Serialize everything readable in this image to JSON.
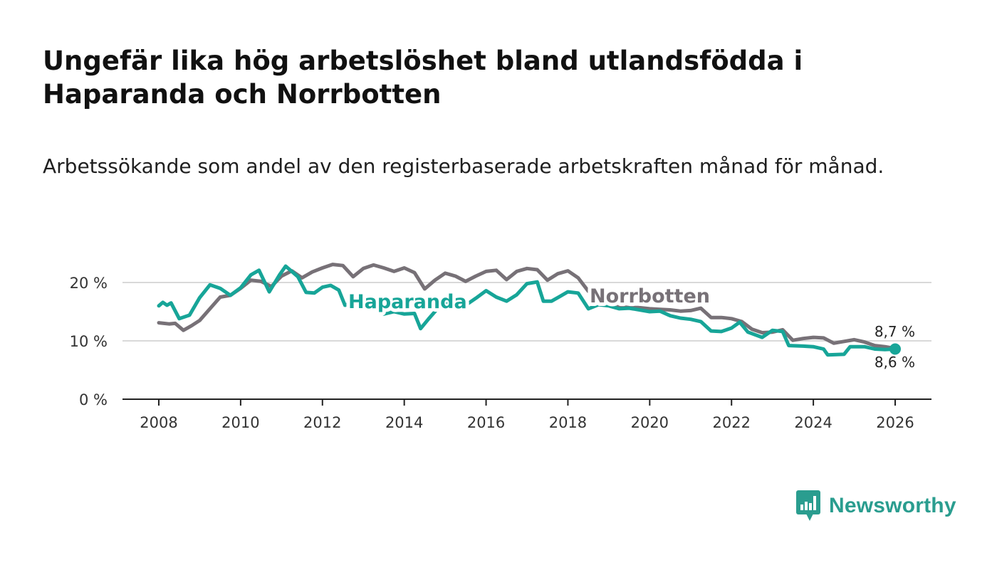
{
  "header": {
    "title": "Ungefär lika hög arbetslöshet bland utlandsfödda i Haparanda och Norrbotten",
    "subtitle": "Arbetssökande som andel av den registerbaserade arbetskraften månad för månad."
  },
  "brand": {
    "name": "Newsworthy",
    "logo_icon": "bar-chart-speech-bubble-icon",
    "color": "#2a9d8f"
  },
  "chart_data": {
    "type": "line",
    "title": "Ungefär lika hög arbetslöshet bland utlandsfödda i Haparanda och Norrbotten",
    "subtitle": "Arbetssökande som andel av den registerbaserade arbetskraften månad för månad.",
    "xlabel": "",
    "ylabel": "",
    "xlim": [
      2007.5,
      2026.9
    ],
    "ylim": [
      0,
      20
    ],
    "x_ticks": [
      2008,
      2010,
      2012,
      2014,
      2016,
      2018,
      2020,
      2022,
      2024,
      2026
    ],
    "x_tick_labels": [
      "2008",
      "2010",
      "2012",
      "2014",
      "2016",
      "2018",
      "2020",
      "2022",
      "2024",
      "2026"
    ],
    "y_ticks": [
      0,
      10,
      20
    ],
    "y_tick_labels": [
      "0 %",
      "10 %",
      "20 %"
    ],
    "grid": true,
    "series": [
      {
        "name": "Norrbotten",
        "color": "#777177",
        "end_label": "8,7 %",
        "points": [
          [
            2008.0,
            13.1
          ],
          [
            2008.25,
            12.9
          ],
          [
            2008.4,
            13.0
          ],
          [
            2008.6,
            11.8
          ],
          [
            2008.8,
            12.6
          ],
          [
            2009.0,
            13.5
          ],
          [
            2009.25,
            15.5
          ],
          [
            2009.5,
            17.5
          ],
          [
            2009.75,
            17.8
          ],
          [
            2010.0,
            19.0
          ],
          [
            2010.25,
            20.4
          ],
          [
            2010.5,
            20.2
          ],
          [
            2010.75,
            19.3
          ],
          [
            2011.0,
            21.1
          ],
          [
            2011.25,
            22.0
          ],
          [
            2011.5,
            20.8
          ],
          [
            2011.75,
            21.8
          ],
          [
            2012.0,
            22.5
          ],
          [
            2012.25,
            23.1
          ],
          [
            2012.5,
            22.9
          ],
          [
            2012.75,
            21.0
          ],
          [
            2013.0,
            22.4
          ],
          [
            2013.25,
            23.0
          ],
          [
            2013.5,
            22.5
          ],
          [
            2013.75,
            21.9
          ],
          [
            2014.0,
            22.5
          ],
          [
            2014.25,
            21.7
          ],
          [
            2014.5,
            18.9
          ],
          [
            2014.75,
            20.4
          ],
          [
            2015.0,
            21.6
          ],
          [
            2015.25,
            21.1
          ],
          [
            2015.5,
            20.2
          ],
          [
            2015.75,
            21.1
          ],
          [
            2016.0,
            21.9
          ],
          [
            2016.25,
            22.1
          ],
          [
            2016.5,
            20.5
          ],
          [
            2016.75,
            21.9
          ],
          [
            2017.0,
            22.4
          ],
          [
            2017.25,
            22.2
          ],
          [
            2017.5,
            20.4
          ],
          [
            2017.75,
            21.5
          ],
          [
            2018.0,
            22.0
          ],
          [
            2018.25,
            20.8
          ],
          [
            2018.5,
            18.5
          ],
          [
            2018.75,
            17.4
          ],
          [
            2019.0,
            16.5
          ],
          [
            2019.25,
            15.9
          ],
          [
            2019.5,
            15.7
          ],
          [
            2019.75,
            15.7
          ],
          [
            2020.0,
            15.5
          ],
          [
            2020.25,
            15.4
          ],
          [
            2020.5,
            15.3
          ],
          [
            2020.75,
            15.1
          ],
          [
            2021.0,
            15.2
          ],
          [
            2021.25,
            15.6
          ],
          [
            2021.5,
            14.0
          ],
          [
            2021.75,
            14.0
          ],
          [
            2022.0,
            13.8
          ],
          [
            2022.25,
            13.3
          ],
          [
            2022.5,
            12.0
          ],
          [
            2022.75,
            11.4
          ],
          [
            2023.0,
            11.5
          ],
          [
            2023.25,
            11.9
          ],
          [
            2023.5,
            10.1
          ],
          [
            2023.75,
            10.4
          ],
          [
            2024.0,
            10.6
          ],
          [
            2024.25,
            10.5
          ],
          [
            2024.5,
            9.6
          ],
          [
            2024.75,
            9.9
          ],
          [
            2025.0,
            10.2
          ],
          [
            2025.25,
            9.8
          ],
          [
            2025.5,
            9.2
          ],
          [
            2025.75,
            9.0
          ],
          [
            2026.0,
            8.7
          ]
        ]
      },
      {
        "name": "Haparanda",
        "color": "#17a598",
        "end_label": "8,6 %",
        "points": [
          [
            2008.0,
            16.0
          ],
          [
            2008.1,
            16.6
          ],
          [
            2008.2,
            16.1
          ],
          [
            2008.3,
            16.5
          ],
          [
            2008.5,
            13.8
          ],
          [
            2008.75,
            14.4
          ],
          [
            2009.0,
            17.4
          ],
          [
            2009.25,
            19.6
          ],
          [
            2009.5,
            19.0
          ],
          [
            2009.75,
            17.8
          ],
          [
            2010.0,
            19.1
          ],
          [
            2010.25,
            21.3
          ],
          [
            2010.45,
            22.1
          ],
          [
            2010.7,
            18.4
          ],
          [
            2010.95,
            21.3
          ],
          [
            2011.1,
            22.8
          ],
          [
            2011.4,
            21.0
          ],
          [
            2011.6,
            18.3
          ],
          [
            2011.8,
            18.2
          ],
          [
            2012.0,
            19.2
          ],
          [
            2012.2,
            19.5
          ],
          [
            2012.4,
            18.7
          ],
          [
            2012.55,
            16.1
          ],
          [
            2012.8,
            16.8
          ],
          [
            2013.0,
            16.3
          ],
          [
            2013.25,
            16.0
          ],
          [
            2013.5,
            14.6
          ],
          [
            2013.75,
            15.0
          ],
          [
            2014.0,
            14.6
          ],
          [
            2014.25,
            14.7
          ],
          [
            2014.4,
            12.1
          ],
          [
            2014.6,
            13.8
          ],
          [
            2014.85,
            15.8
          ],
          [
            2015.0,
            16.3
          ],
          [
            2015.25,
            16.6
          ],
          [
            2015.5,
            16.1
          ],
          [
            2015.75,
            17.3
          ],
          [
            2016.0,
            18.6
          ],
          [
            2016.25,
            17.5
          ],
          [
            2016.5,
            16.8
          ],
          [
            2016.75,
            17.9
          ],
          [
            2017.0,
            19.8
          ],
          [
            2017.25,
            20.1
          ],
          [
            2017.4,
            16.8
          ],
          [
            2017.6,
            16.8
          ],
          [
            2017.8,
            17.6
          ],
          [
            2018.0,
            18.4
          ],
          [
            2018.25,
            18.2
          ],
          [
            2018.5,
            15.5
          ],
          [
            2018.75,
            16.2
          ],
          [
            2019.0,
            16.0
          ],
          [
            2019.25,
            15.5
          ],
          [
            2019.5,
            15.6
          ],
          [
            2019.75,
            15.3
          ],
          [
            2020.0,
            15.0
          ],
          [
            2020.25,
            15.1
          ],
          [
            2020.5,
            14.3
          ],
          [
            2020.75,
            13.9
          ],
          [
            2021.0,
            13.7
          ],
          [
            2021.25,
            13.3
          ],
          [
            2021.5,
            11.7
          ],
          [
            2021.75,
            11.6
          ],
          [
            2022.0,
            12.2
          ],
          [
            2022.2,
            13.2
          ],
          [
            2022.4,
            11.5
          ],
          [
            2022.75,
            10.6
          ],
          [
            2023.0,
            11.8
          ],
          [
            2023.25,
            11.6
          ],
          [
            2023.4,
            9.2
          ],
          [
            2023.75,
            9.1
          ],
          [
            2024.0,
            9.0
          ],
          [
            2024.25,
            8.6
          ],
          [
            2024.35,
            7.6
          ],
          [
            2024.75,
            7.7
          ],
          [
            2024.9,
            9.0
          ],
          [
            2025.25,
            9.0
          ],
          [
            2025.5,
            8.6
          ],
          [
            2025.75,
            8.5
          ],
          [
            2026.0,
            8.6
          ]
        ]
      }
    ]
  }
}
